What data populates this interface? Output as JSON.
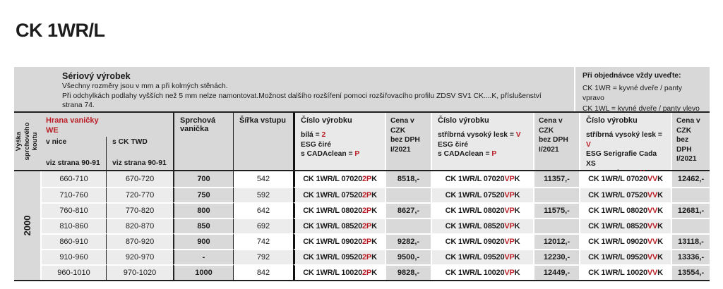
{
  "title": "CK 1WR/L",
  "intro": {
    "title": "Sériový výrobek",
    "line1": "Všechny rozměry jsou v mm a při kolmých stěnách.",
    "line2": "Při odchylkách podlahy vyšších než 5 mm nelze namontovat.Možnost dalšího rozšíření pomoci rozšiřovacího profilu ZDSV SV1 CK....K, příslušenství",
    "line3": "strana 74."
  },
  "order_note": {
    "title": "Při objednávce vždy uveďte:",
    "line1": "CK 1WR = kyvné dveře / panty vpravo",
    "line2": "CK 1WL = kyvné dveře / panty vlevo"
  },
  "table": {
    "height_label_1": "Výška",
    "height_label_2": "sprchového koutu",
    "edge_title": "Hrana vaničky",
    "edge_subtitle": "WE",
    "col_niche": "v nice",
    "col_twd": "s CK TWD",
    "see_page": "viz strana 90-91",
    "col_tray": "Sprchová vanička",
    "col_entry_width": "Šířka vstupu",
    "col_product": "Číslo výrobku",
    "price_header": {
      "l1": "Cena v CZK",
      "l2": "bez DPH",
      "l3": "I/2021"
    },
    "variants": [
      {
        "spec_pre": "bílá = ",
        "spec_red": "2",
        "glass": "ESG čiré",
        "cada_pre": "s CADAclean = ",
        "cada_red": "P"
      },
      {
        "spec_pre": "stříbrná vysoký lesk = ",
        "spec_red": "V",
        "glass": "ESG čiré",
        "cada_pre": "s CADAclean = ",
        "cada_red": "P"
      },
      {
        "spec_pre": "stříbrná vysoký lesk = ",
        "spec_red": "V",
        "glass": "ESG Serigrafie Cada XS",
        "cada_pre": "s CADAclean = ",
        "cada_red": "V"
      }
    ],
    "height_value": "2000",
    "rows": [
      {
        "niche": "660-710",
        "twd": "670-720",
        "tray": "700",
        "width": "542",
        "code1": {
          "pre": "CK 1WR/L 07020 ",
          "red": "2P",
          "post": "K"
        },
        "price1": "8518,-",
        "code2": {
          "pre": "CK 1WR/L 07020 ",
          "red": "VP",
          "post": "K"
        },
        "price2": "11357,-",
        "code3": {
          "pre": "CK 1WR/L 07020 ",
          "red": "VV",
          "post": "K"
        },
        "price3": "12462,-"
      },
      {
        "niche": "710-760",
        "twd": "720-770",
        "tray": "750",
        "width": "592",
        "code1": {
          "pre": "CK 1WR/L 07520 ",
          "red": "2P",
          "post": "K"
        },
        "price1": "",
        "code2": {
          "pre": "CK 1WR/L 07520 ",
          "red": "VP",
          "post": "K"
        },
        "price2": "",
        "code3": {
          "pre": "CK 1WR/L 07520 ",
          "red": "VV",
          "post": "K"
        },
        "price3": ""
      },
      {
        "niche": "760-810",
        "twd": "770-820",
        "tray": "800",
        "width": "642",
        "code1": {
          "pre": "CK 1WR/L 08020 ",
          "red": "2P",
          "post": "K"
        },
        "price1": "8627,-",
        "code2": {
          "pre": "CK 1WR/L 08020 ",
          "red": "VP",
          "post": "K"
        },
        "price2": "11575,-",
        "code3": {
          "pre": "CK 1WR/L 08020 ",
          "red": "VV",
          "post": "K"
        },
        "price3": "12681,-"
      },
      {
        "niche": "810-860",
        "twd": "820-870",
        "tray": "850",
        "width": "692",
        "code1": {
          "pre": "CK 1WR/L 08520 ",
          "red": "2P",
          "post": "K"
        },
        "price1": "",
        "code2": {
          "pre": "CK 1WR/L 08520 ",
          "red": "VP",
          "post": "K"
        },
        "price2": "",
        "code3": {
          "pre": "CK 1WR/L 08520 ",
          "red": "VV",
          "post": "K"
        },
        "price3": ""
      },
      {
        "niche": "860-910",
        "twd": "870-920",
        "tray": "900",
        "width": "742",
        "code1": {
          "pre": "CK 1WR/L 09020 ",
          "red": "2P",
          "post": "K"
        },
        "price1": "9282,-",
        "code2": {
          "pre": "CK 1WR/L 09020 ",
          "red": "VP",
          "post": "K"
        },
        "price2": "12012,-",
        "code3": {
          "pre": "CK 1WR/L 09020 ",
          "red": "VV",
          "post": "K"
        },
        "price3": "13118,-"
      },
      {
        "niche": "910-960",
        "twd": "920-970",
        "tray": "-",
        "width": "792",
        "code1": {
          "pre": "CK 1WR/L 09520 ",
          "red": "2P",
          "post": "K"
        },
        "price1": "9500,-",
        "code2": {
          "pre": "CK 1WR/L 09520 ",
          "red": "VP",
          "post": "K"
        },
        "price2": "12230,-",
        "code3": {
          "pre": "CK 1WR/L 09520 ",
          "red": "VV",
          "post": "K"
        },
        "price3": "13336,-"
      },
      {
        "niche": "960-1010",
        "twd": "970-1020",
        "tray": "1000",
        "width": "842",
        "code1": {
          "pre": "CK 1WR/L 10020 ",
          "red": "2P",
          "post": "K"
        },
        "price1": "9828,-",
        "code2": {
          "pre": "CK 1WR/L 10020 ",
          "red": "VP",
          "post": "K"
        },
        "price2": "12449,-",
        "code3": {
          "pre": "CK 1WR/L 10020 ",
          "red": "VV",
          "post": "K"
        },
        "price3": "13554,-"
      }
    ]
  }
}
